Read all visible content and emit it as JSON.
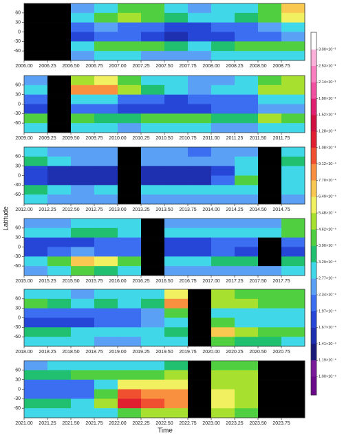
{
  "y_label": "Latitude",
  "x_label": "Time",
  "colorbar": {
    "ticks": [
      {
        "value": 0.0001,
        "label": "1.00×10⁻⁴"
      },
      {
        "value": 0.000119,
        "label": "1.19×10⁻⁴"
      },
      {
        "value": 0.000141,
        "label": "1.41×10⁻⁴"
      },
      {
        "value": 0.000167,
        "label": "1.67×10⁻⁴"
      },
      {
        "value": 0.000197,
        "label": "1.97×10⁻⁴"
      },
      {
        "value": 0.000234,
        "label": "2.34×10⁻⁴"
      },
      {
        "value": 0.000277,
        "label": "2.77×10⁻⁴"
      },
      {
        "value": 0.000329,
        "label": "3.29×10⁻⁴"
      },
      {
        "value": 0.00039,
        "label": "3.90×10⁻⁴"
      },
      {
        "value": 0.000462,
        "label": "4.62×10⁻⁴"
      },
      {
        "value": 0.000548,
        "label": "5.48×10⁻⁴"
      },
      {
        "value": 0.000649,
        "label": "6.49×10⁻⁴"
      },
      {
        "value": 0.00077,
        "label": "7.70×10⁻⁴"
      },
      {
        "value": 0.000912,
        "label": "9.12×10⁻⁴"
      },
      {
        "value": 0.00108,
        "label": "1.08×10⁻³"
      },
      {
        "value": 0.00128,
        "label": "1.28×10⁻³"
      },
      {
        "value": 0.00152,
        "label": "1.52×10⁻³"
      },
      {
        "value": 0.0018,
        "label": "1.80×10⁻³"
      },
      {
        "value": 0.00214,
        "label": "2.14×10⁻³"
      },
      {
        "value": 0.00253,
        "label": "2.53×10⁻³"
      },
      {
        "value": 0.003,
        "label": "3.00×10⁻³"
      }
    ],
    "colors": [
      "#6a0a8a",
      "#7a1a9a",
      "#1a1a7a",
      "#1e2fb0",
      "#2646d8",
      "#3b6ef0",
      "#5aa0f5",
      "#40d8e8",
      "#20c070",
      "#50d040",
      "#a8e030",
      "#f0f060",
      "#f8c850",
      "#f89040",
      "#f05030",
      "#e02030",
      "#d01040",
      "#e02070",
      "#f050a0",
      "#f880c0",
      "#fab0d8",
      "#ffffff"
    ],
    "gap_color": "#000000"
  },
  "chart_data": [
    {
      "type": "heatmap",
      "xlim": [
        2006,
        2009
      ],
      "ylim": [
        -90,
        90
      ],
      "yticks": [
        60,
        30,
        0,
        -30,
        -60
      ],
      "xticks": [
        {
          "value": 2006,
          "label": "2006.00"
        },
        {
          "value": 2006.25,
          "label": "2006.25"
        },
        {
          "value": 2006.5,
          "label": "2006.50"
        },
        {
          "value": 2006.75,
          "label": "2006.75"
        },
        {
          "value": 2007,
          "label": "2007.00"
        },
        {
          "value": 2007.25,
          "label": "2007.25"
        },
        {
          "value": 2007.5,
          "label": "2007.50"
        },
        {
          "value": 2007.75,
          "label": "2007.75"
        },
        {
          "value": 2008,
          "label": "2008.00"
        },
        {
          "value": 2008.25,
          "label": "2008.25"
        },
        {
          "value": 2008.5,
          "label": "2008.50"
        },
        {
          "value": 2008.75,
          "label": "2008.75"
        }
      ],
      "x": [
        2006.125,
        2006.375,
        2006.625,
        2006.875,
        2007.125,
        2007.375,
        2007.625,
        2007.875,
        2008.125,
        2008.375,
        2008.625,
        2008.875
      ],
      "y": [
        75,
        45,
        15,
        -15,
        -45,
        -75
      ],
      "z": [
        [
          null,
          null,
          0.00025,
          0.0003,
          0.0004,
          0.0004,
          0.0003,
          0.00025,
          0.0003,
          0.0003,
          0.0004,
          0.0007
        ],
        [
          null,
          null,
          0.0003,
          0.0004,
          0.0005,
          0.00045,
          0.00035,
          0.0003,
          0.0003,
          0.00035,
          0.0004,
          0.0006
        ],
        [
          null,
          null,
          0.0002,
          0.00025,
          0.0002,
          0.0002,
          0.00018,
          0.00018,
          0.0002,
          0.0002,
          0.00025,
          0.0003
        ],
        [
          null,
          null,
          0.00018,
          0.0002,
          0.0002,
          0.00018,
          0.00016,
          0.00018,
          0.00018,
          0.0002,
          0.0002,
          0.00025
        ],
        [
          null,
          null,
          0.0003,
          0.0004,
          0.00045,
          0.0004,
          0.00035,
          0.0003,
          0.00035,
          0.0004,
          0.0004,
          0.0004
        ],
        [
          null,
          null,
          0.00025,
          0.0003,
          0.0003,
          0.00025,
          0.00025,
          0.00025,
          0.0003,
          0.0003,
          0.0003,
          0.0003
        ]
      ]
    },
    {
      "type": "heatmap",
      "xlim": [
        2009,
        2012
      ],
      "ylim": [
        -90,
        90
      ],
      "yticks": [
        60,
        30,
        0,
        -30,
        -60
      ],
      "xticks": [
        {
          "value": 2009,
          "label": "2009.00"
        },
        {
          "value": 2009.25,
          "label": "2009.25"
        },
        {
          "value": 2009.5,
          "label": "2009.50"
        },
        {
          "value": 2009.75,
          "label": "2009.75"
        },
        {
          "value": 2010,
          "label": "2010.00"
        },
        {
          "value": 2010.25,
          "label": "2010.25"
        },
        {
          "value": 2010.5,
          "label": "2010.50"
        },
        {
          "value": 2010.75,
          "label": "2010.75"
        },
        {
          "value": 2011,
          "label": "2011.00"
        },
        {
          "value": 2011.25,
          "label": "2011.25"
        },
        {
          "value": 2011.5,
          "label": "2011.50"
        },
        {
          "value": 2011.75,
          "label": "2011.75"
        }
      ],
      "x": [
        2009.125,
        2009.375,
        2009.625,
        2009.875,
        2010.125,
        2010.375,
        2010.625,
        2010.875,
        2011.125,
        2011.375,
        2011.625,
        2011.875
      ],
      "y": [
        75,
        45,
        15,
        -15,
        -45,
        -75
      ],
      "z": [
        [
          0.00025,
          null,
          0.0005,
          0.0006,
          0.0004,
          0.0003,
          0.0003,
          0.00025,
          0.00025,
          0.0003,
          0.0004,
          0.0005
        ],
        [
          0.0003,
          null,
          0.0009,
          0.0008,
          0.0005,
          0.00035,
          0.0003,
          0.00025,
          0.0003,
          0.0003,
          0.0005,
          0.0005
        ],
        [
          0.0002,
          null,
          0.0003,
          0.0003,
          0.0002,
          0.0002,
          0.00018,
          0.0002,
          0.0002,
          0.0002,
          0.0003,
          0.0003
        ],
        [
          0.00018,
          null,
          0.0002,
          0.0002,
          0.00018,
          0.00018,
          0.00018,
          0.00018,
          0.0002,
          0.0002,
          0.00025,
          0.00025
        ],
        [
          0.0004,
          null,
          0.0004,
          0.00035,
          0.00035,
          0.0004,
          0.0004,
          0.0004,
          0.00035,
          0.00035,
          0.0005,
          0.0004
        ],
        [
          0.0003,
          null,
          0.0003,
          0.0003,
          0.00025,
          0.0003,
          0.0003,
          0.0003,
          0.00025,
          0.00025,
          0.0003,
          0.0003
        ]
      ]
    },
    {
      "type": "heatmap",
      "xlim": [
        2012,
        2015
      ],
      "ylim": [
        -90,
        90
      ],
      "yticks": [
        60,
        30,
        0,
        -30,
        -60
      ],
      "xticks": [
        {
          "value": 2012,
          "label": "2012.00"
        },
        {
          "value": 2012.25,
          "label": "2012.25"
        },
        {
          "value": 2012.5,
          "label": "2012.50"
        },
        {
          "value": 2012.75,
          "label": "2012.75"
        },
        {
          "value": 2013,
          "label": "2013.00"
        },
        {
          "value": 2013.25,
          "label": "2013.25"
        },
        {
          "value": 2013.5,
          "label": "2013.50"
        },
        {
          "value": 2013.75,
          "label": "2013.75"
        },
        {
          "value": 2014,
          "label": "2014.00"
        },
        {
          "value": 2014.25,
          "label": "2014.25"
        },
        {
          "value": 2014.5,
          "label": "2014.50"
        },
        {
          "value": 2014.75,
          "label": "2014.75"
        }
      ],
      "x": [
        2012.125,
        2012.375,
        2012.625,
        2012.875,
        2013.125,
        2013.375,
        2013.625,
        2013.875,
        2014.125,
        2014.375,
        2014.625,
        2014.875
      ],
      "y": [
        75,
        45,
        15,
        -15,
        -45,
        -75
      ],
      "z": [
        [
          0.0003,
          0.00025,
          0.00025,
          0.00025,
          null,
          0.00025,
          0.00025,
          0.0002,
          0.00025,
          0.00025,
          null,
          0.0003
        ],
        [
          0.00035,
          0.0003,
          0.00025,
          0.00025,
          null,
          0.00025,
          0.00025,
          0.00025,
          0.00025,
          0.0003,
          null,
          0.00035
        ],
        [
          0.00018,
          0.00016,
          0.00016,
          0.00016,
          null,
          0.00016,
          0.00016,
          0.00016,
          0.00018,
          0.0003,
          null,
          0.0003
        ],
        [
          0.00018,
          0.00016,
          0.00016,
          0.00016,
          null,
          0.00016,
          0.00016,
          0.00016,
          0.0002,
          0.00045,
          null,
          0.0003
        ],
        [
          0.00035,
          0.0003,
          0.00025,
          0.0003,
          null,
          0.0003,
          0.0003,
          0.0003,
          0.0003,
          0.0003,
          null,
          0.0003
        ],
        [
          0.0003,
          0.00025,
          0.00025,
          0.00025,
          null,
          0.00025,
          0.00025,
          0.00025,
          0.00025,
          0.00025,
          null,
          0.00025
        ]
      ]
    },
    {
      "type": "heatmap",
      "xlim": [
        2015,
        2018
      ],
      "ylim": [
        -90,
        90
      ],
      "yticks": [
        60,
        30,
        0,
        -30,
        -60
      ],
      "xticks": [
        {
          "value": 2015,
          "label": "2015.00"
        },
        {
          "value": 2015.25,
          "label": "2015.25"
        },
        {
          "value": 2015.5,
          "label": "2015.50"
        },
        {
          "value": 2015.75,
          "label": "2015.75"
        },
        {
          "value": 2016,
          "label": "2016.00"
        },
        {
          "value": 2016.25,
          "label": "2016.25"
        },
        {
          "value": 2016.5,
          "label": "2016.50"
        },
        {
          "value": 2016.75,
          "label": "2016.75"
        },
        {
          "value": 2017,
          "label": "2017.00"
        },
        {
          "value": 2017.25,
          "label": "2017.25"
        },
        {
          "value": 2017.5,
          "label": "2017.50"
        },
        {
          "value": 2017.75,
          "label": "2017.75"
        }
      ],
      "x": [
        2015.125,
        2015.375,
        2015.625,
        2015.875,
        2016.125,
        2016.375,
        2016.625,
        2016.875,
        2017.125,
        2017.375,
        2017.625,
        2017.875
      ],
      "y": [
        75,
        45,
        15,
        -15,
        -45,
        -75
      ],
      "z": [
        [
          0.00025,
          0.00025,
          0.0003,
          0.0003,
          0.0003,
          null,
          0.00025,
          0.00025,
          0.00025,
          0.00025,
          0.00025,
          0.0004
        ],
        [
          0.0003,
          0.0003,
          0.00035,
          0.00035,
          0.0003,
          null,
          0.0003,
          0.0003,
          0.0003,
          0.0003,
          0.0003,
          0.0004
        ],
        [
          0.00018,
          0.00018,
          0.00018,
          0.0002,
          0.0002,
          null,
          0.00018,
          0.00018,
          0.0002,
          0.0002,
          null,
          0.0002
        ],
        [
          0.00018,
          0.0002,
          0.00025,
          0.0002,
          0.0002,
          null,
          0.00018,
          0.00018,
          0.0002,
          0.00018,
          null,
          0.00018
        ],
        [
          0.0003,
          0.0004,
          0.0007,
          0.0006,
          0.0004,
          null,
          0.0003,
          0.0003,
          0.00035,
          0.00035,
          null,
          0.00035
        ],
        [
          0.00025,
          0.0003,
          0.0004,
          0.00035,
          0.0003,
          null,
          0.00025,
          0.00025,
          0.00025,
          0.00025,
          0.00025,
          0.0003
        ]
      ]
    },
    {
      "type": "heatmap",
      "xlim": [
        2018,
        2021
      ],
      "ylim": [
        -90,
        90
      ],
      "yticks": [
        60,
        30,
        0,
        -30,
        -60
      ],
      "xticks": [
        {
          "value": 2018,
          "label": "2018.00"
        },
        {
          "value": 2018.25,
          "label": "2018.25"
        },
        {
          "value": 2018.5,
          "label": "2018.50"
        },
        {
          "value": 2018.75,
          "label": "2018.75"
        },
        {
          "value": 2019,
          "label": "2019.00"
        },
        {
          "value": 2019.25,
          "label": "2019.25"
        },
        {
          "value": 2019.5,
          "label": "2019.50"
        },
        {
          "value": 2019.75,
          "label": "2019.75"
        },
        {
          "value": 2020,
          "label": "2020.00"
        },
        {
          "value": 2020.25,
          "label": "2020.25"
        },
        {
          "value": 2020.5,
          "label": "2020.50"
        },
        {
          "value": 2020.75,
          "label": "2020.75"
        }
      ],
      "x": [
        2018.125,
        2018.375,
        2018.625,
        2018.875,
        2019.125,
        2019.375,
        2019.625,
        2019.875,
        2020.125,
        2020.375,
        2020.625,
        2020.875
      ],
      "y": [
        75,
        45,
        15,
        -15,
        -45,
        -75
      ],
      "z": [
        [
          0.0003,
          0.0003,
          0.00025,
          0.0003,
          0.0003,
          0.0003,
          0.0006,
          null,
          0.0005,
          0.00045,
          0.0004,
          0.0004
        ],
        [
          0.0004,
          0.00035,
          0.0003,
          0.00035,
          0.0003,
          0.00035,
          0.0009,
          null,
          0.0005,
          0.0005,
          0.00045,
          0.0004
        ],
        [
          0.0002,
          0.0002,
          0.0002,
          0.0002,
          0.0002,
          0.00025,
          0.0004,
          null,
          0.0003,
          0.0003,
          0.0003,
          0.0003
        ],
        [
          0.00018,
          0.00018,
          0.00018,
          0.0002,
          0.0002,
          0.00025,
          0.0003,
          null,
          0.0004,
          0.0003,
          0.0003,
          0.0003
        ],
        [
          0.00035,
          0.00035,
          0.0003,
          0.0003,
          0.0003,
          0.0003,
          0.00035,
          null,
          0.0007,
          0.0005,
          0.00045,
          0.0004
        ],
        [
          0.0003,
          0.0003,
          0.0003,
          0.00025,
          0.00025,
          0.0003,
          0.0003,
          null,
          0.0004,
          0.00035,
          0.00035,
          0.0003
        ]
      ]
    },
    {
      "type": "heatmap",
      "xlim": [
        2021,
        2024
      ],
      "ylim": [
        -90,
        90
      ],
      "yticks": [
        60,
        30,
        0,
        -30,
        -60
      ],
      "xticks": [
        {
          "value": 2021,
          "label": "2021.00"
        },
        {
          "value": 2021.25,
          "label": "2021.25"
        },
        {
          "value": 2021.5,
          "label": "2021.50"
        },
        {
          "value": 2021.75,
          "label": "2021.75"
        },
        {
          "value": 2022,
          "label": "2022.00"
        },
        {
          "value": 2022.25,
          "label": "2022.25"
        },
        {
          "value": 2022.5,
          "label": "2022.50"
        },
        {
          "value": 2022.75,
          "label": "2022.75"
        },
        {
          "value": 2023,
          "label": "2023.00"
        },
        {
          "value": 2023.25,
          "label": "2023.25"
        },
        {
          "value": 2023.5,
          "label": "2023.50"
        },
        {
          "value": 2023.75,
          "label": "2023.75"
        }
      ],
      "x": [
        2021.125,
        2021.375,
        2021.625,
        2021.875,
        2022.125,
        2022.375,
        2022.625,
        2022.875,
        2023.125,
        2023.375,
        2023.625,
        2023.875
      ],
      "y": [
        75,
        45,
        15,
        -15,
        -45,
        -75
      ],
      "z": [
        [
          0.00025,
          0.0003,
          0.0003,
          0.0003,
          0.0003,
          0.0003,
          0.00035,
          null,
          0.0004,
          0.0004,
          null,
          null
        ],
        [
          0.00035,
          0.00035,
          0.0004,
          0.0004,
          0.00045,
          0.00045,
          0.0005,
          null,
          0.0005,
          0.0005,
          null,
          null
        ],
        [
          0.0002,
          0.0002,
          0.0002,
          0.0003,
          0.0006,
          0.0006,
          0.0006,
          null,
          0.0005,
          0.0005,
          null,
          null
        ],
        [
          0.0002,
          0.0002,
          0.0002,
          0.0004,
          0.001,
          0.0009,
          0.0008,
          null,
          0.0006,
          0.0005,
          null,
          null
        ],
        [
          0.00035,
          0.00035,
          0.0003,
          0.0005,
          0.0012,
          0.001,
          0.0008,
          null,
          0.0006,
          0.0005,
          null,
          null
        ],
        [
          0.0003,
          0.0003,
          0.0003,
          0.0003,
          0.0004,
          0.0005,
          0.0005,
          null,
          0.0005,
          0.0004,
          null,
          null
        ]
      ]
    }
  ]
}
